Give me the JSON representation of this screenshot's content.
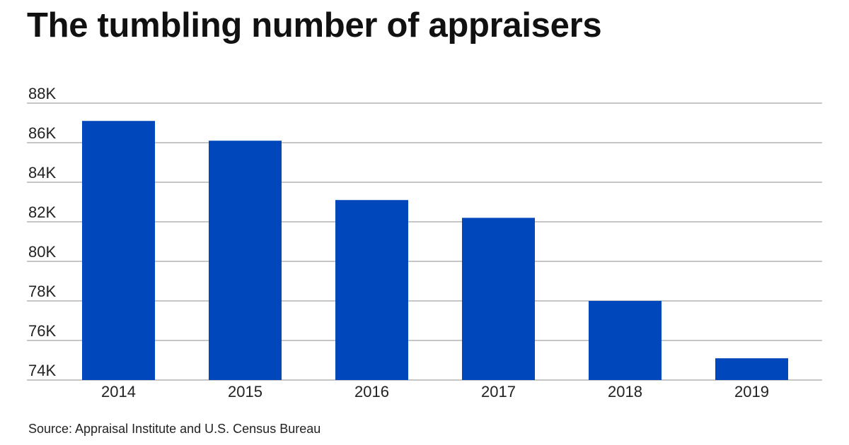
{
  "chart_data": {
    "type": "bar",
    "title": "The tumbling number of appraisers",
    "categories": [
      "2014",
      "2015",
      "2016",
      "2017",
      "2018",
      "2019"
    ],
    "values": [
      87100,
      86100,
      83100,
      82200,
      78000,
      75100
    ],
    "ylim": [
      74000,
      88000
    ],
    "yticks": [
      74000,
      76000,
      78000,
      80000,
      82000,
      84000,
      86000,
      88000
    ],
    "ytick_labels": [
      "74K",
      "76K",
      "78K",
      "80K",
      "82K",
      "84K",
      "86K",
      "88K"
    ],
    "xlabel": "",
    "ylabel": "",
    "grid": true,
    "source": "Source: Appraisal Institute and U.S. Census Bureau",
    "colors": {
      "bar": "#0047bb",
      "grid": "#8c8c8c",
      "baseline": "#8c8c8c"
    }
  }
}
